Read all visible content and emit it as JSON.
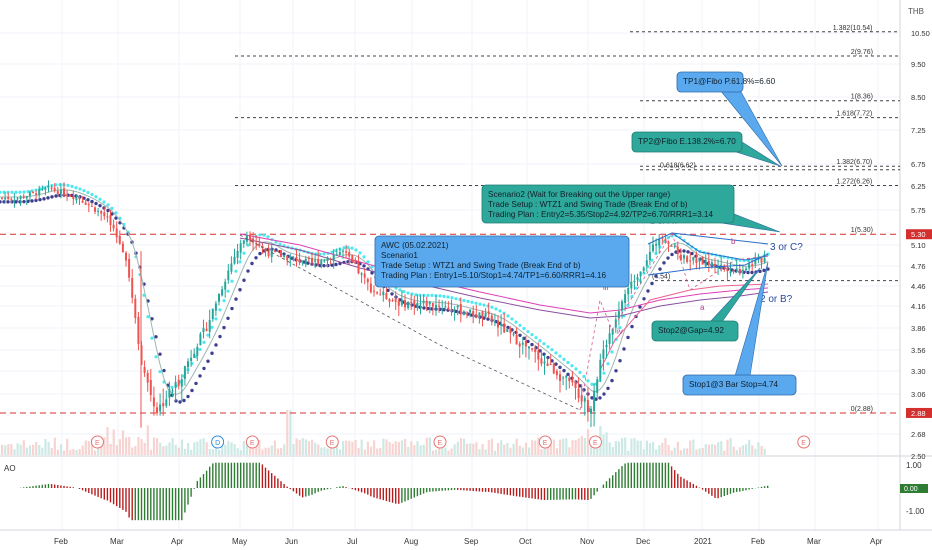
{
  "chart_data": {
    "type": "candlestick",
    "symbol_info": "AWC (05.02.2021)",
    "currency": "THB",
    "y_axis": {
      "ticks": [
        10.5,
        9.5,
        8.5,
        7.25,
        6.75,
        6.25,
        5.75,
        5.1,
        4.76,
        4.46,
        4.16,
        3.86,
        3.56,
        3.3,
        3.06,
        2.68,
        2.5
      ],
      "tick_labels": [
        "10.50",
        "9.50",
        "8.50",
        "7.25",
        "6.75",
        "6.25",
        "5.75",
        "5.10",
        "4.76",
        "4.46",
        "4.16",
        "3.86",
        "3.56",
        "3.30",
        "3.06",
        "2.68",
        "2.50"
      ],
      "price_badges": [
        {
          "value": 5.3,
          "label": "5.30"
        },
        {
          "value": 2.88,
          "label": "2.88"
        }
      ]
    },
    "x_axis": {
      "labels": [
        "Feb",
        "Mar",
        "Apr",
        "May",
        "Jun",
        "Jul",
        "Aug",
        "Sep",
        "Oct",
        "Nov",
        "Dec",
        "2021",
        "Feb",
        "Mar",
        "Apr"
      ],
      "label_dates": [
        "2020-02",
        "2020-03",
        "2020-04",
        "2020-05",
        "2020-06",
        "2020-07",
        "2020-08",
        "2020-09",
        "2020-10",
        "2020-11",
        "2020-12",
        "2021-01",
        "2021-02",
        "2021-03",
        "2021-04"
      ]
    },
    "approx_close_path": [
      [
        "2020-01-10",
        6.0
      ],
      [
        "2020-01-25",
        6.2
      ],
      [
        "2020-02-10",
        6.0
      ],
      [
        "2020-02-25",
        5.6
      ],
      [
        "2020-03-05",
        4.9
      ],
      [
        "2020-03-13",
        3.3
      ],
      [
        "2020-03-20",
        2.9
      ],
      [
        "2020-04-01",
        3.2
      ],
      [
        "2020-04-15",
        3.9
      ],
      [
        "2020-04-28",
        4.9
      ],
      [
        "2020-05-05",
        5.3
      ],
      [
        "2020-05-15",
        5.0
      ],
      [
        "2020-05-28",
        4.9
      ],
      [
        "2020-06-10",
        4.8
      ],
      [
        "2020-06-25",
        5.0
      ],
      [
        "2020-07-10",
        4.4
      ],
      [
        "2020-07-25",
        4.2
      ],
      [
        "2020-08-10",
        4.2
      ],
      [
        "2020-08-25",
        4.1
      ],
      [
        "2020-09-10",
        4.0
      ],
      [
        "2020-09-25",
        3.7
      ],
      [
        "2020-10-10",
        3.4
      ],
      [
        "2020-10-25",
        3.1
      ],
      [
        "2020-11-02",
        2.92
      ],
      [
        "2020-11-10",
        3.6
      ],
      [
        "2020-11-20",
        4.3
      ],
      [
        "2020-12-01",
        4.8
      ],
      [
        "2020-12-10",
        5.3
      ],
      [
        "2020-12-20",
        4.9
      ],
      [
        "2021-01-05",
        4.8
      ],
      [
        "2021-01-20",
        4.7
      ],
      [
        "2021-02-05",
        4.9
      ]
    ],
    "fib_levels": [
      {
        "label": "1.382(10.54)",
        "value": 10.54
      },
      {
        "label": "2(9.76)",
        "value": 9.76
      },
      {
        "label": "1(8.36)",
        "value": 8.36
      },
      {
        "label": "1.618(7.72)",
        "value": 7.72
      },
      {
        "label": "1.382(6.70)",
        "value": 6.7
      },
      {
        "label": "0.618(6.62)",
        "value": 6.62
      },
      {
        "label": "1.272(6.26)",
        "value": 6.26
      },
      {
        "label": "1(5.30)",
        "value": 5.3
      },
      {
        "label": "(4.54)",
        "value": 4.54
      },
      {
        "label": "0(2.88)",
        "value": 2.88
      }
    ],
    "wave_labels": [
      "1 or A?",
      "3 or C?",
      "2 or B?",
      "b",
      "a",
      "iii",
      "iv",
      "ii"
    ],
    "events": [
      {
        "label": "E",
        "date": "2020-02-20"
      },
      {
        "label": "D",
        "date": "2020-04-20"
      },
      {
        "label": "E",
        "date": "2020-05-08"
      },
      {
        "label": "E",
        "date": "2020-06-20"
      },
      {
        "label": "E",
        "date": "2020-08-15"
      },
      {
        "label": "E",
        "date": "2020-10-10"
      },
      {
        "label": "E",
        "date": "2020-11-05"
      },
      {
        "label": "E",
        "date": "2021-02-25"
      }
    ],
    "annotations": {
      "tp1": "TP1@Fibo P.61.8%=6.60",
      "tp2": "TP2@Fibo E.138.2%=6.70",
      "scenario2": [
        "Scenario2 (Wait for Breaking out the Upper range)",
        "Trade Setup : WTZ1 and Swing Trade (Break End of b)",
        "Trading Plan : Entry2=5.35/Stop2=4.92/TP2=6.70/RRR1=3.14"
      ],
      "scenario1": [
        "AWC (05.02.2021)",
        "Scenario1",
        "Trade Setup : WTZ1 and Swing Trade (Break End of b)",
        "Trading Plan : Entry1=5.10/Stop1=4.74/TP1=6.60/RRR1=4.16"
      ],
      "stop2": "Stop2@Gap=4.92",
      "stop1": "Stop1@3 Bar Stop=4.74"
    },
    "ao_indicator": {
      "name": "AO",
      "ticks": [
        1.0,
        0.0,
        -1.0
      ],
      "tick_labels": [
        "1.00",
        "0.00",
        "-1.00"
      ]
    },
    "colors": {
      "up": "#26a69a",
      "down": "#ef5350",
      "ema_fast": "#4de8ef",
      "ema_slow": "#3f3f8f",
      "ma_pink": "#e040b8",
      "ma_purple": "#8c4fa0",
      "box_blue": "#5aa9ee",
      "box_teal": "#2ea89a",
      "red_line": "#d32f2f",
      "wave_text": "#2a4aa0",
      "ao_up": "#2e7d32",
      "ao_down": "#b71c1c"
    }
  }
}
